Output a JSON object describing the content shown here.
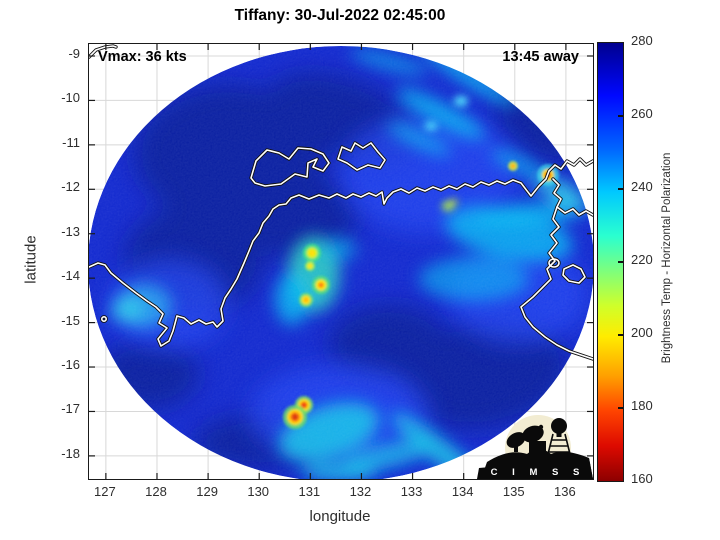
{
  "figure": {
    "title": "Tiffany: 30-Jul-2022 02:45:00"
  },
  "annotations": {
    "vmax": "Vmax: 36 kts",
    "time_away": "13:45 away"
  },
  "axes": {
    "x": {
      "label": "longitude",
      "ticks": [
        127,
        128,
        129,
        130,
        131,
        132,
        133,
        134,
        135,
        136
      ],
      "range": [
        126.67,
        136.53
      ]
    },
    "y": {
      "label": "latitude",
      "ticks": [
        -9,
        -10,
        -11,
        -12,
        -13,
        -14,
        -15,
        -16,
        -17,
        -18
      ],
      "range": [
        -8.73,
        -18.52
      ]
    }
  },
  "colorbar": {
    "label": "Brightness Temp - Horizontal Polarization",
    "ticks": [
      280,
      260,
      240,
      220,
      200,
      180,
      160
    ],
    "range": [
      160,
      280
    ],
    "gradient": [
      [
        "0",
        "#00008f"
      ],
      [
        "12",
        "#0008ff"
      ],
      [
        "24",
        "#0064ff"
      ],
      [
        "34",
        "#00c8ff"
      ],
      [
        "44",
        "#2affd0"
      ],
      [
        "52",
        "#7dff7d"
      ],
      [
        "60",
        "#cfff2a"
      ],
      [
        "67",
        "#ffec00"
      ],
      [
        "76",
        "#ffa000"
      ],
      [
        "84",
        "#ff4400"
      ],
      [
        "92",
        "#dd0a00"
      ],
      [
        "100",
        "#8d0000"
      ]
    ]
  },
  "logo": {
    "text": "C I M S S"
  },
  "colors": {
    "swath_base_blue": "#0a22ce",
    "swath_dark_navy": "#03128f",
    "swath_cyan": "#00b9f2",
    "hotspot_yellow": "#ffe000",
    "hotspot_red": "#d92b00",
    "coastline": "#ffffff",
    "coastline_outline": "#111111",
    "grid": "#d8d8d8",
    "axis_text": "#2e2e2e",
    "logo_beige": "#f2ecd2"
  },
  "chart_data": {
    "type": "heatmap",
    "title": "Tiffany: 30-Jul-2022 02:45:00",
    "xlabel": "longitude",
    "ylabel": "latitude",
    "xlim": [
      126.67,
      136.53
    ],
    "ylim": [
      -18.52,
      -8.73
    ],
    "xticks": [
      127,
      128,
      129,
      130,
      131,
      132,
      133,
      134,
      135,
      136
    ],
    "yticks": [
      -9,
      -10,
      -11,
      -12,
      -13,
      -14,
      -15,
      -16,
      -17,
      -18
    ],
    "grid": true,
    "colorbar": {
      "label": "Brightness Temp - Horizontal Polarization",
      "ticks": [
        160,
        180,
        200,
        220,
        240,
        260,
        280
      ],
      "range": [
        160,
        280
      ],
      "colormap": "jet-reversed (280=dark blue, 160=dark red)",
      "position": "right"
    },
    "annotations": [
      "Vmax: 36 kts",
      "13:45 away"
    ],
    "description": "Circular microwave brightness-temperature swath of Tropical Cyclone Tiffany over northern Australia; mostly 260-280 K (blue) with cooler convective bands 230-250 K (cyan) and isolated deep convection cells.",
    "swath": {
      "shape": "circular",
      "center_lon": 131.6,
      "center_lat": -13.75,
      "radius_deg": 5
    },
    "hotspots": [
      {
        "lon": 131.0,
        "lat": -13.4,
        "approx_temp_K": 200
      },
      {
        "lon": 131.2,
        "lat": -14.1,
        "approx_temp_K": 190
      },
      {
        "lon": 130.9,
        "lat": -14.5,
        "approx_temp_K": 200
      },
      {
        "lon": 130.9,
        "lat": -16.8,
        "approx_temp_K": 180
      },
      {
        "lon": 130.7,
        "lat": -17.1,
        "approx_temp_K": 170
      },
      {
        "lon": 135.6,
        "lat": -11.7,
        "approx_temp_K": 180
      }
    ],
    "overlays": [
      "white coastlines of northern Australia and Tiwi Islands",
      "CIMSS logo bottom-right"
    ]
  }
}
